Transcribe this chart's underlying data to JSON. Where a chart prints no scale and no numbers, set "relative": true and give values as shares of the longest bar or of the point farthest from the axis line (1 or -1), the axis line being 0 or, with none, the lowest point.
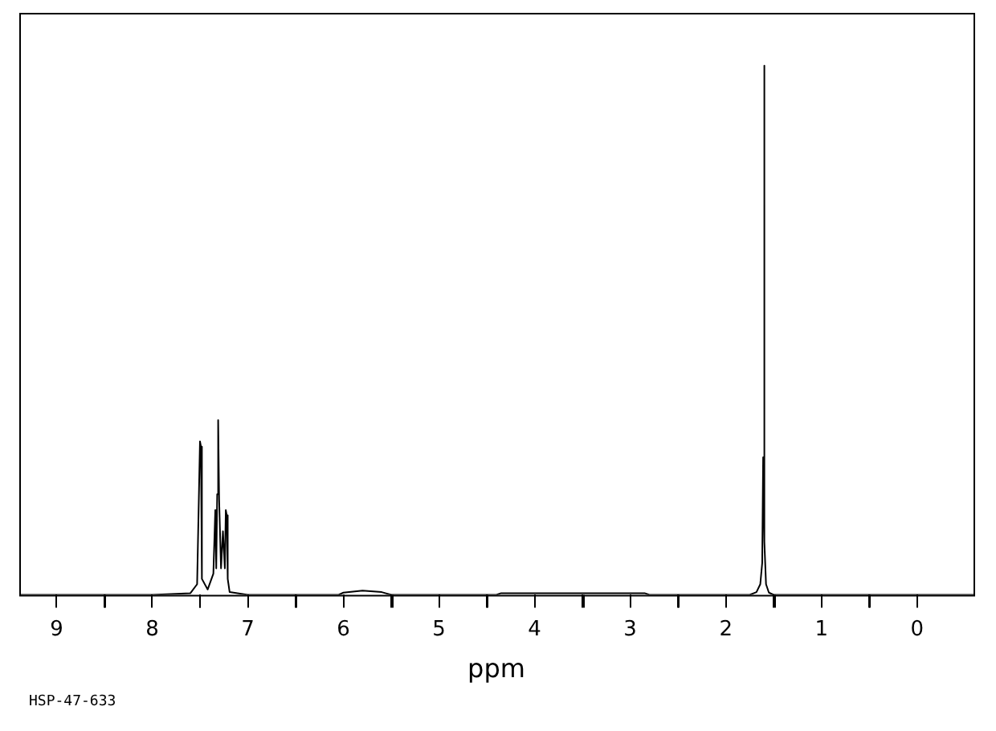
{
  "chart_data": {
    "type": "line",
    "xlabel": "ppm",
    "annotations": [
      "HSP-47-633"
    ],
    "relative": true,
    "color": "#000000",
    "grid": false,
    "legend": false,
    "marker": "none",
    "xlim": [
      9.39,
      -0.59
    ],
    "xticks": [
      9,
      {
        "value": 8.5,
        "label": null
      },
      8,
      {
        "value": 7.5,
        "label": null
      },
      7,
      {
        "value": 6.5,
        "label": null
      },
      6,
      {
        "value": 5.5,
        "label": null
      },
      5,
      {
        "value": 4.5,
        "label": null
      },
      4,
      {
        "value": 3.5,
        "label": null
      },
      3,
      {
        "value": 2.5,
        "label": null
      },
      2,
      {
        "value": 1.5,
        "label": null
      },
      1,
      {
        "value": 0.5,
        "label": null
      },
      0
    ],
    "x": [
      9.39,
      8.0,
      7.6,
      7.53,
      7.51,
      7.5,
      7.49,
      7.48,
      7.42,
      7.36,
      7.34,
      7.33,
      7.32,
      7.31,
      7.3,
      7.28,
      7.26,
      7.24,
      7.23,
      7.22,
      7.21,
      7.19,
      7.0,
      6.05,
      6.0,
      5.8,
      5.6,
      5.5,
      4.4,
      4.35,
      2.85,
      2.8,
      1.75,
      1.68,
      1.64,
      1.62,
      1.61,
      1.6,
      1.595,
      1.58,
      1.55,
      1.5,
      -0.59
    ],
    "values": [
      0,
      0,
      0.003,
      0.02,
      0.2,
      0.29,
      0.28,
      0.03,
      0.01,
      0.04,
      0.16,
      0.05,
      0.19,
      0.33,
      0.18,
      0.05,
      0.12,
      0.05,
      0.16,
      0.15,
      0.03,
      0.005,
      0,
      0,
      0.004,
      0.008,
      0.005,
      0,
      0,
      0.003,
      0.003,
      0,
      0,
      0.005,
      0.02,
      0.06,
      0.26,
      1,
      0.1,
      0.02,
      0.004,
      0,
      0
    ]
  }
}
